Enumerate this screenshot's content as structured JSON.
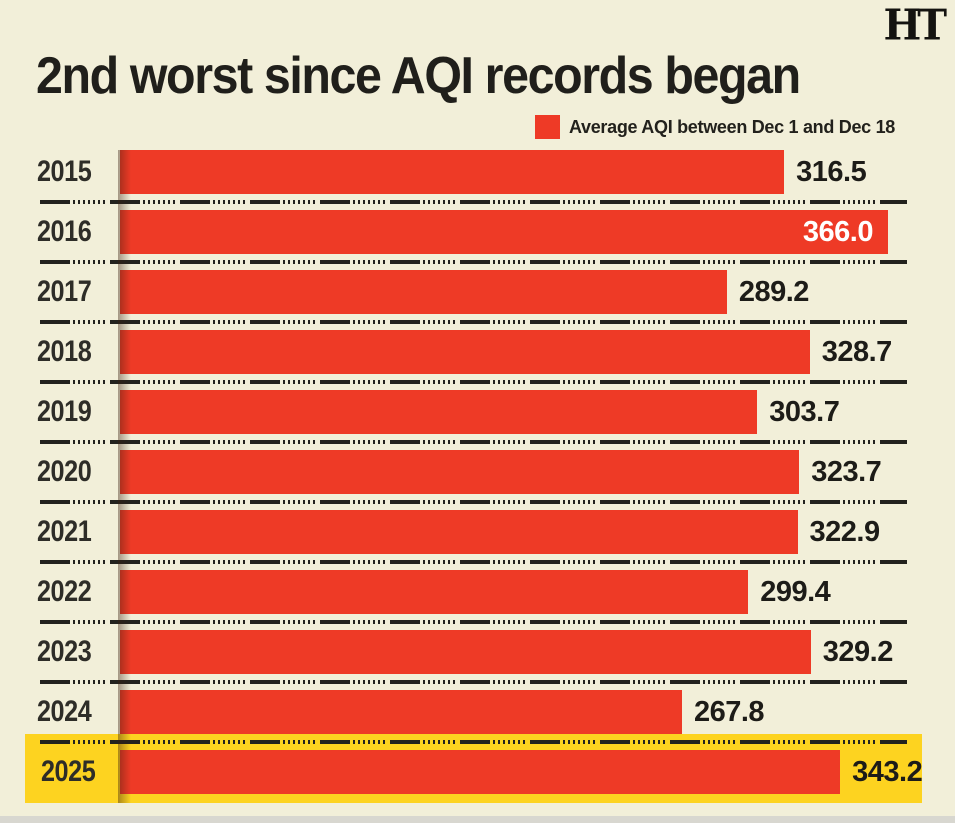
{
  "header": {
    "title": "2nd worst since AQI records began",
    "logo_text": "HT"
  },
  "legend": {
    "label": "Average AQI between Dec 1 and Dec 18"
  },
  "chart_data": {
    "type": "bar",
    "orientation": "horizontal",
    "title": "2nd worst since AQI records began",
    "legend_entries": [
      "Average AQI between Dec 1 and Dec 18"
    ],
    "legend_position": "top-right",
    "grid": false,
    "categories": [
      "2015",
      "2016",
      "2017",
      "2018",
      "2019",
      "2020",
      "2021",
      "2022",
      "2023",
      "2024",
      "2025"
    ],
    "values": [
      316.5,
      366.0,
      289.2,
      328.7,
      303.7,
      323.7,
      322.9,
      299.4,
      329.2,
      267.8,
      343.2
    ],
    "xlim": [
      0,
      366
    ],
    "value_decimals": 1,
    "highlighted_category": "2025",
    "max_value_label_inside_bar": "2016"
  },
  "colors": {
    "background": "#f2efd9",
    "bar": "#ee3a26",
    "highlight_band": "#fdd320",
    "value_text": "#1d1c18",
    "value_text_inside": "#ffffff",
    "separator": "#23221e",
    "title_text": "#201f1b"
  }
}
